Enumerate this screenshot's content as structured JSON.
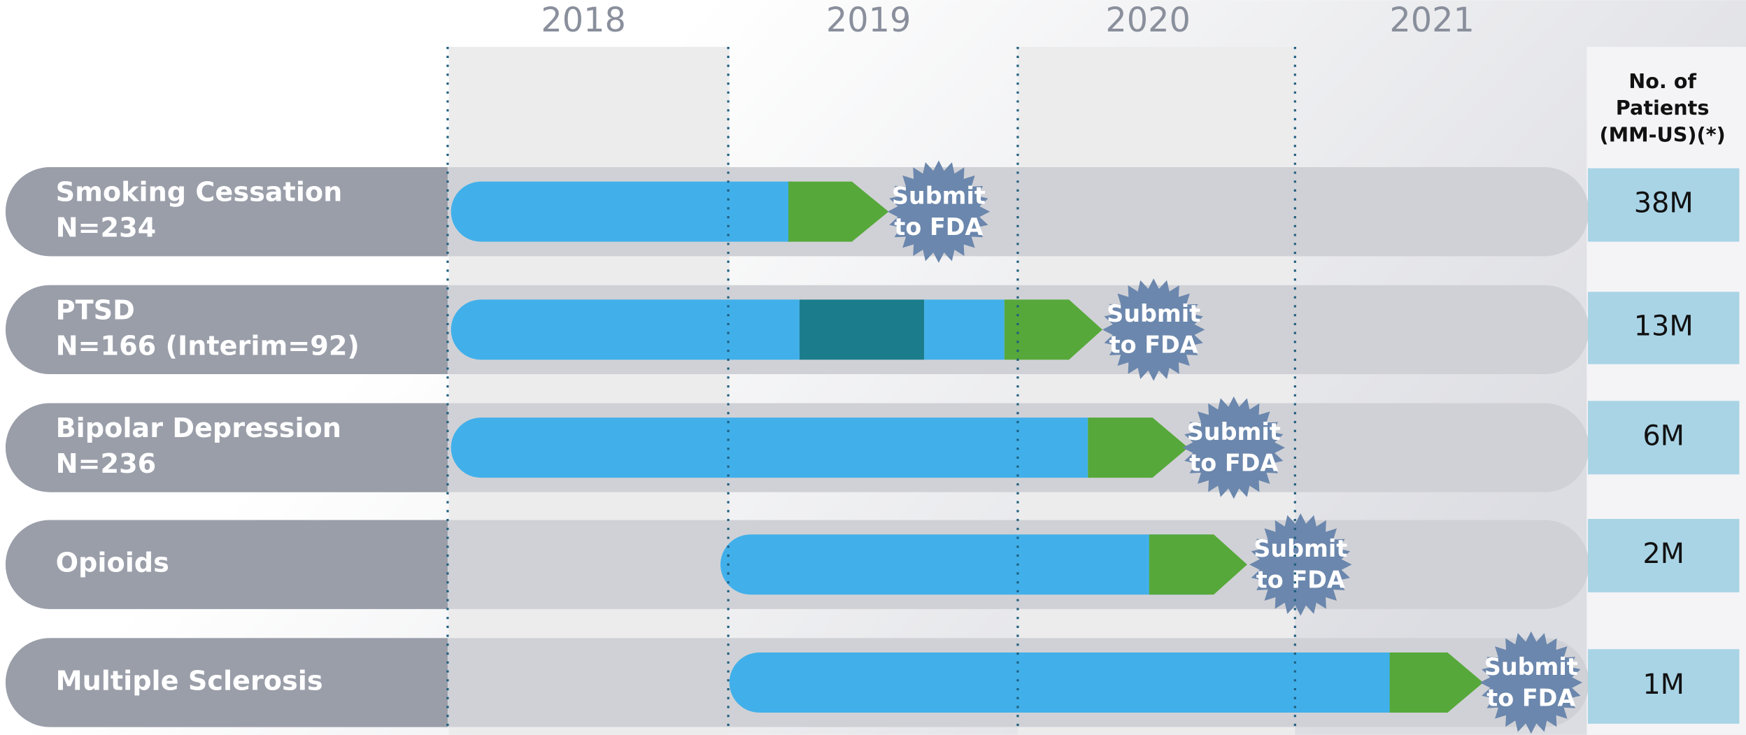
{
  "years": [
    "2018",
    "2019",
    "2020",
    "2021"
  ],
  "patients_header": [
    "No. of",
    "Patients",
    "(MM-US)(*)"
  ],
  "milestone": [
    "Submit",
    "to FDA"
  ],
  "rows": [
    {
      "label": [
        "Smoking Cessation",
        "N=234"
      ],
      "patients": "38M"
    },
    {
      "label": [
        "PTSD",
        "N=166  (Interim=92)"
      ],
      "patients": "13M"
    },
    {
      "label": [
        "Bipolar Depression",
        "N=236"
      ],
      "patients": "6M"
    },
    {
      "label": [
        "Opioids"
      ],
      "patients": "2M"
    },
    {
      "label": [
        "Multiple Sclerosis"
      ],
      "patients": "1M"
    }
  ]
}
